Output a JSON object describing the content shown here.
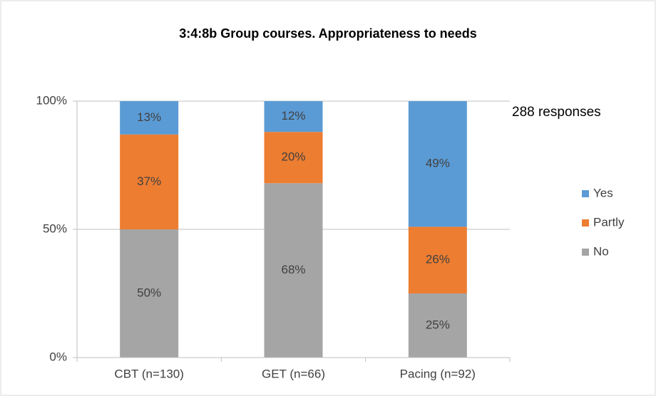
{
  "chart_data": {
    "type": "stacked_bar",
    "title": "3:4:8b Group courses. Appropriateness to needs",
    "annotation": "288 responses",
    "categories": [
      "CBT (n=130)",
      "GET (n=66)",
      "Pacing (n=92)"
    ],
    "series": [
      {
        "name": "No",
        "color": "#a5a5a5",
        "values": [
          50,
          68,
          25
        ],
        "value_labels": [
          "50%",
          "68%",
          "25%"
        ]
      },
      {
        "name": "Partly",
        "color": "#ed7d31",
        "values": [
          37,
          20,
          26
        ],
        "value_labels": [
          "37%",
          "20%",
          "26%"
        ]
      },
      {
        "name": "Yes",
        "color": "#5b9bd5",
        "values": [
          13,
          12,
          49
        ],
        "value_labels": [
          "13%",
          "12%",
          "49%"
        ]
      }
    ],
    "ylim": [
      0,
      100
    ],
    "yticks": [
      {
        "value": 0,
        "label": "0%"
      },
      {
        "value": 50,
        "label": "50%"
      },
      {
        "value": 100,
        "label": "100%"
      }
    ],
    "grid": true,
    "legend": "right"
  }
}
